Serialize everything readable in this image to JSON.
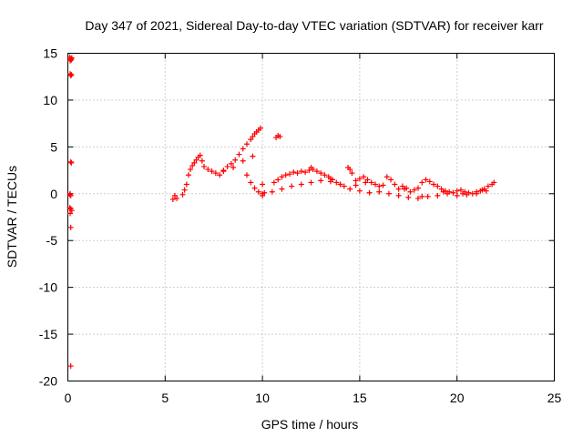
{
  "chart_data": {
    "type": "scatter",
    "title": "Day 347 of 2021, Sidereal Day-to-day VTEC variation (SDTVAR) for receiver karr",
    "xlabel": "GPS time / hours",
    "ylabel": "SDTVAR / TECUs",
    "xlim": [
      0,
      25
    ],
    "ylim": [
      -20,
      15
    ],
    "xticks": [
      0,
      5,
      10,
      15,
      20,
      25
    ],
    "yticks": [
      -20,
      -15,
      -10,
      -5,
      0,
      5,
      10,
      15
    ],
    "xtick_labels": [
      "0",
      "5",
      "10",
      "15",
      "20",
      "25"
    ],
    "ytick_labels": [
      "-20",
      "-15",
      "-10",
      "-5",
      "0",
      "5",
      "10",
      "15"
    ],
    "grid": true,
    "marker": "plus",
    "color": "#ff0000",
    "series": [
      {
        "name": "SDTVAR",
        "x": [
          0.1,
          0.12,
          0.15,
          0.18,
          0.2,
          0.12,
          0.15,
          0.18,
          0.15,
          0.18,
          0.1,
          0.12,
          0.15,
          0.1,
          0.12,
          0.15,
          0.2,
          0.15,
          0.15,
          5.4,
          5.5,
          5.6,
          5.9,
          6.0,
          6.1,
          6.2,
          6.3,
          6.4,
          6.5,
          6.6,
          6.7,
          6.8,
          6.9,
          7.0,
          7.2,
          7.4,
          7.6,
          7.8,
          8.0,
          8.2,
          8.4,
          8.6,
          8.8,
          9.0,
          9.2,
          9.4,
          9.5,
          9.6,
          9.7,
          9.8,
          9.9,
          10.0,
          9.2,
          9.4,
          9.6,
          9.8,
          10.0,
          10.1,
          10.7,
          10.8,
          10.9,
          10.6,
          10.8,
          11.0,
          11.2,
          11.4,
          11.6,
          11.8,
          12.0,
          12.2,
          12.4,
          12.6,
          12.8,
          13.0,
          13.2,
          13.4,
          13.6,
          13.8,
          14.0,
          14.2,
          14.4,
          14.5,
          14.6,
          14.8,
          15.0,
          15.2,
          15.4,
          15.6,
          15.8,
          16.0,
          16.2,
          16.4,
          16.6,
          16.8,
          17.0,
          17.2,
          17.4,
          17.6,
          17.8,
          18.0,
          18.2,
          18.4,
          18.6,
          18.8,
          19.0,
          19.2,
          19.4,
          19.6,
          19.8,
          20.0,
          20.2,
          20.4,
          20.6,
          20.8,
          21.0,
          21.2,
          21.4,
          21.6,
          21.8,
          21.9,
          11.0,
          11.5,
          12.0,
          12.5,
          13.0,
          13.5,
          14.0,
          14.5,
          15.0,
          15.5,
          16.0,
          16.5,
          17.0,
          17.5,
          18.0,
          18.5,
          19.0,
          19.5,
          20.0,
          20.5,
          21.0,
          21.5,
          8.0,
          8.5,
          9.0,
          9.5,
          10.0,
          10.5,
          12.5,
          13.5,
          14.8,
          15.3,
          17.3,
          18.2,
          19.3,
          20.3,
          21.3
        ],
        "y": [
          14.6,
          14.2,
          14.4,
          14.3,
          14.5,
          12.8,
          12.6,
          12.7,
          3.4,
          3.3,
          -0.1,
          0.0,
          -0.2,
          -1.5,
          -2.1,
          -1.6,
          -1.8,
          -3.6,
          -18.4,
          -0.6,
          -0.2,
          -0.5,
          -0.1,
          0.4,
          1.0,
          2.0,
          2.6,
          3.0,
          3.3,
          3.6,
          3.9,
          4.1,
          3.5,
          2.9,
          2.6,
          2.4,
          2.2,
          2.0,
          2.4,
          2.9,
          3.2,
          3.6,
          4.2,
          4.8,
          5.3,
          5.8,
          6.1,
          6.4,
          6.6,
          6.8,
          7.0,
          1.0,
          2.0,
          1.2,
          0.6,
          0.2,
          -0.2,
          0.1,
          6.0,
          6.2,
          6.1,
          1.2,
          1.5,
          1.8,
          2.0,
          2.1,
          2.3,
          2.2,
          2.4,
          2.3,
          2.5,
          2.6,
          2.4,
          2.2,
          2.0,
          1.8,
          1.5,
          1.2,
          1.0,
          0.8,
          2.8,
          2.6,
          2.2,
          1.4,
          1.6,
          1.8,
          1.5,
          1.2,
          1.0,
          0.8,
          0.9,
          1.8,
          1.5,
          1.0,
          0.5,
          0.8,
          0.6,
          0.2,
          0.4,
          0.6,
          1.2,
          1.5,
          1.3,
          1.0,
          0.8,
          0.5,
          0.3,
          0.2,
          0.1,
          0.3,
          0.4,
          0.2,
          0.1,
          0.0,
          0.2,
          0.3,
          0.5,
          0.8,
          1.0,
          1.2,
          0.5,
          0.8,
          1.0,
          1.2,
          1.4,
          1.3,
          1.0,
          0.5,
          0.3,
          0.1,
          0.2,
          0.0,
          -0.2,
          -0.4,
          -0.5,
          -0.3,
          -0.2,
          0.0,
          -0.2,
          -0.1,
          0.0,
          0.3,
          2.5,
          2.8,
          3.5,
          4.0,
          0.0,
          0.2,
          2.8,
          1.6,
          0.9,
          1.2,
          0.5,
          -0.3,
          0.2,
          0.0,
          0.4
        ]
      }
    ]
  }
}
